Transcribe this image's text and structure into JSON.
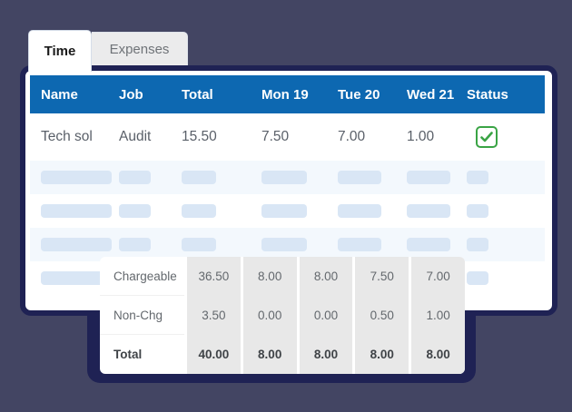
{
  "tabs": [
    {
      "label": "Time",
      "active": true
    },
    {
      "label": "Expenses",
      "active": false
    }
  ],
  "timesheet": {
    "columns": [
      "Name",
      "Job",
      "Total",
      "Mon 19",
      "Tue 20",
      "Wed 21",
      "Status"
    ],
    "row": {
      "name": "Tech sol",
      "job": "Audit",
      "total": "15.50",
      "mon19": "7.50",
      "tue20": "7.00",
      "wed21": "1.00",
      "status": "approved"
    },
    "placeholder_rows": 4
  },
  "summary": {
    "rows": [
      {
        "label": "Chargeable",
        "values": [
          "36.50",
          "8.00",
          "8.00",
          "7.50",
          "7.00"
        ],
        "bold": false
      },
      {
        "label": "Non-Chg",
        "values": [
          "3.50",
          "0.00",
          "0.00",
          "0.50",
          "1.00"
        ],
        "bold": false
      },
      {
        "label": "Total",
        "values": [
          "40.00",
          "8.00",
          "8.00",
          "8.00",
          "8.00"
        ],
        "bold": true
      }
    ]
  },
  "icons": {
    "status_approved": "checkmark-checkbox-icon"
  },
  "colors": {
    "background": "#434563",
    "navy_border": "#1f2254",
    "header_blue": "#0d68b1",
    "approved_green": "#3aa445",
    "placeholder_pill": "#d9e6f5",
    "row_alternate": "#f3f8fd",
    "summary_column_gray": "#e8e8e8"
  }
}
